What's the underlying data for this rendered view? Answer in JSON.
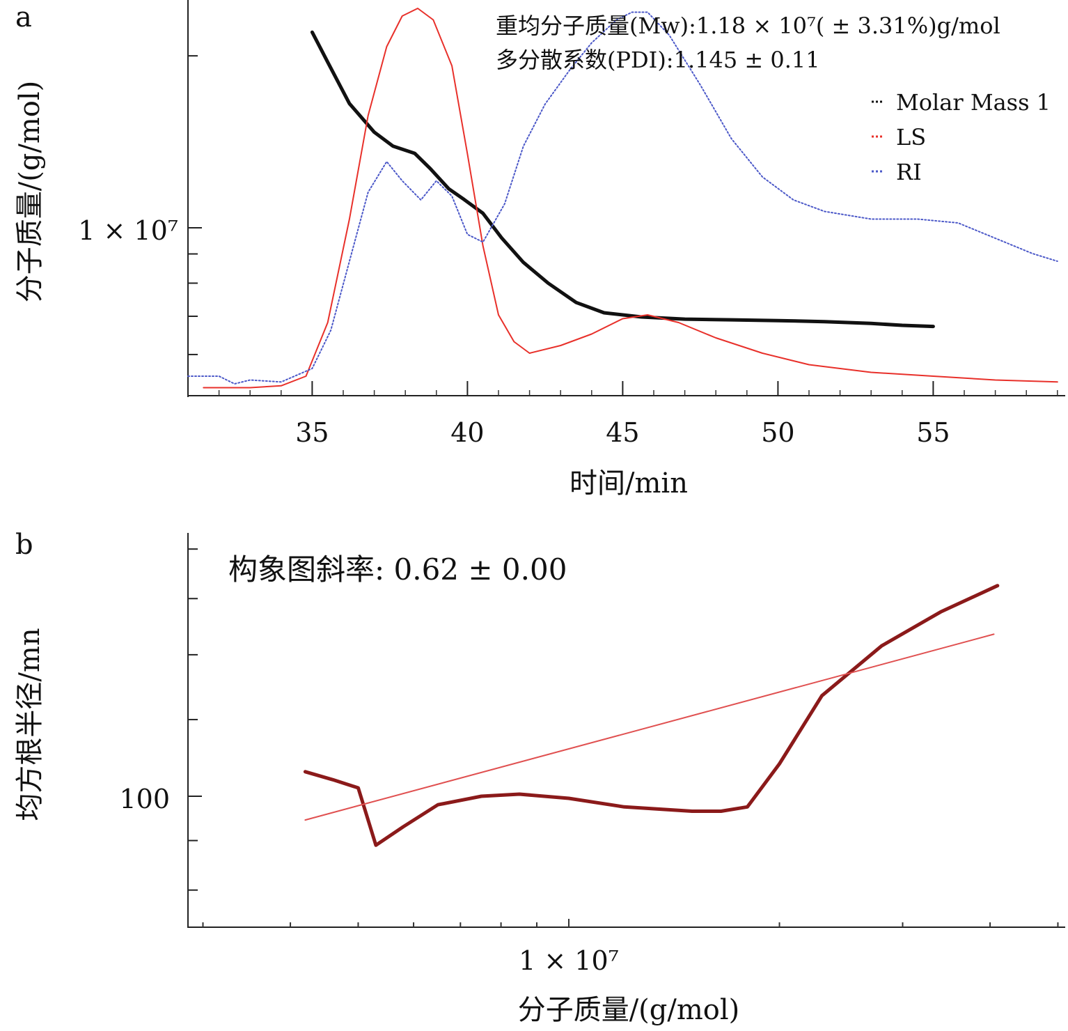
{
  "chart_data": [
    {
      "panel": "a",
      "type": "line",
      "xlabel": "时间/min",
      "ylabel": "分子质量/(g/mol)",
      "xlim": [
        31,
        59
      ],
      "x_ticks": [
        "35",
        "40",
        "45",
        "50",
        "55"
      ],
      "y_scale": "log",
      "y_tick_label": "1 × 10⁷",
      "annotations": [
        "重均分子质量(Mw):1.18 × 10⁷( ± 3.31%)g/mol",
        "多分散系数(PDI):1.145 ± 0.11"
      ],
      "legend_position": "top-right",
      "series": [
        {
          "name": "Molar Mass 1",
          "color": "#111111",
          "style": "solid-thick",
          "x": [
            35.0,
            35.5,
            36.2,
            37.0,
            37.6,
            38.3,
            38.8,
            39.4,
            39.9,
            40.5,
            41.1,
            41.8,
            42.6,
            43.5,
            44.4,
            45.6,
            47.0,
            48.5,
            50.0,
            51.5,
            53.0,
            54.0,
            55.0
          ],
          "y": [
            22000000.0,
            19500000.0,
            16500000.0,
            14700000.0,
            13900000.0,
            13500000.0,
            12700000.0,
            11700000.0,
            11200000.0,
            10600000.0,
            9600000.0,
            8700000.0,
            8000000.0,
            7400000.0,
            7100000.0,
            6980000.0,
            6920000.0,
            6900000.0,
            6880000.0,
            6850000.0,
            6800000.0,
            6750000.0,
            6720000.0
          ]
        },
        {
          "name": "LS",
          "color": "#e8302a",
          "style": "solid",
          "x": [
            31.5,
            33.0,
            34.0,
            34.8,
            35.5,
            36.2,
            36.8,
            37.4,
            37.9,
            38.4,
            38.9,
            39.5,
            40.0,
            40.5,
            41.0,
            41.5,
            42.0,
            43.0,
            44.0,
            45.0,
            45.8,
            46.8,
            48.0,
            49.5,
            51.0,
            53.0,
            55.0,
            57.0,
            59.0
          ],
          "y": [
            0.01,
            0.01,
            0.015,
            0.04,
            0.18,
            0.45,
            0.72,
            0.9,
            0.98,
            1.0,
            0.97,
            0.85,
            0.62,
            0.38,
            0.2,
            0.13,
            0.1,
            0.12,
            0.15,
            0.19,
            0.2,
            0.18,
            0.14,
            0.1,
            0.07,
            0.05,
            0.04,
            0.03,
            0.025
          ]
        },
        {
          "name": "RI",
          "color": "#4b58c8",
          "style": "dotted",
          "x": [
            31.0,
            32.0,
            32.5,
            33.0,
            34.0,
            35.0,
            35.6,
            36.2,
            36.8,
            37.4,
            37.9,
            38.5,
            39.0,
            39.5,
            40.0,
            40.5,
            41.2,
            41.8,
            42.5,
            43.3,
            44.0,
            44.8,
            45.3,
            45.8,
            46.5,
            47.5,
            48.5,
            49.5,
            50.5,
            51.5,
            53.0,
            54.5,
            55.8,
            57.0,
            58.2,
            59.0
          ],
          "y": [
            0.04,
            0.04,
            0.02,
            0.03,
            0.025,
            0.06,
            0.16,
            0.34,
            0.52,
            0.6,
            0.55,
            0.5,
            0.55,
            0.51,
            0.41,
            0.39,
            0.49,
            0.64,
            0.75,
            0.84,
            0.91,
            0.97,
            0.99,
            0.99,
            0.93,
            0.8,
            0.66,
            0.56,
            0.5,
            0.47,
            0.45,
            0.45,
            0.44,
            0.4,
            0.36,
            0.34
          ]
        }
      ]
    },
    {
      "panel": "b",
      "type": "line",
      "xlabel": "分子质量/(g/mol)",
      "ylabel": "均方根半径/mn",
      "x_scale": "log",
      "y_scale": "log",
      "x_tick_label": "1 × 10⁷",
      "y_tick_label": "100",
      "annotation": "构象图斜率: 0.62 ± 0.00",
      "series": [
        {
          "color": "#8b1a1a",
          "style": "solid-thick",
          "x": [
            4200000.0,
            4600000.0,
            5000000.0,
            5300000.0,
            5800000.0,
            6500000.0,
            7500000.0,
            8500000.0,
            10000000.0,
            12000000.0,
            15000000.0,
            16500000.0,
            18000000.0,
            20000000.0,
            23000000.0,
            28000000.0,
            34000000.0,
            41000000.0
          ],
          "y": [
            106,
            104,
            102,
            89,
            93,
            98,
            100,
            100.5,
            99.5,
            97.5,
            96.5,
            96.5,
            97.5,
            108,
            127,
            143,
            155,
            165
          ]
        },
        {
          "color": "#e05050",
          "style": "solid-thin",
          "kind": "fit",
          "x": [
            4200000.0,
            40500000.0
          ],
          "y": [
            94.5,
            147
          ]
        }
      ]
    }
  ]
}
